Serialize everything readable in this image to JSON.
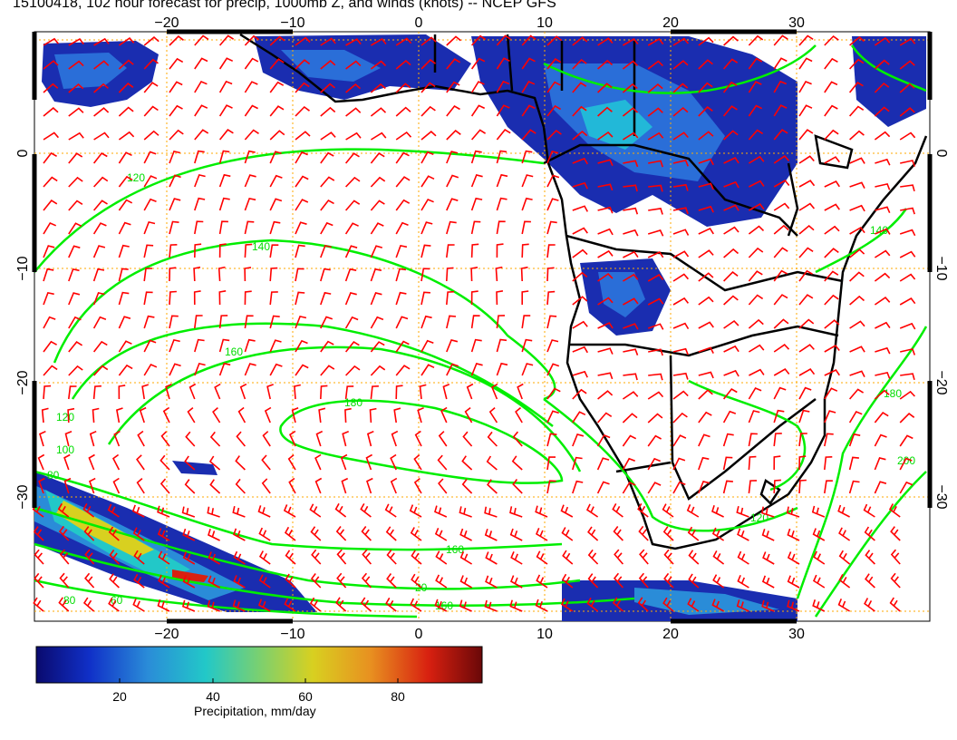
{
  "title": "15100418, 102 hour forecast for precip, 1000mb Z, and winds (knots) -- NCEP GFS",
  "axes": {
    "lon_ticks": [
      "−20",
      "−10",
      "0",
      "10",
      "20",
      "30"
    ],
    "lat_ticks": [
      "0",
      "−10",
      "−20",
      "−30"
    ]
  },
  "contour_labels": [
    "120",
    "140",
    "160",
    "180",
    "160",
    "120",
    "100",
    "80",
    "80",
    "60",
    "20",
    "160",
    "180",
    "200",
    "120",
    "140"
  ],
  "colorbar": {
    "label": "Precipitation, mm/day",
    "ticks": [
      "20",
      "40",
      "60",
      "80"
    ],
    "colors": [
      "#0a0a6e",
      "#1030c8",
      "#2a8cd8",
      "#22c8c8",
      "#7ad070",
      "#d8d020",
      "#e89020",
      "#d82010",
      "#6a0808"
    ]
  },
  "colors": {
    "wind_barbs": "#ff0000",
    "height_contours": "#00ee00",
    "coastlines": "#000000",
    "gridlines": "#ffaa00"
  }
}
